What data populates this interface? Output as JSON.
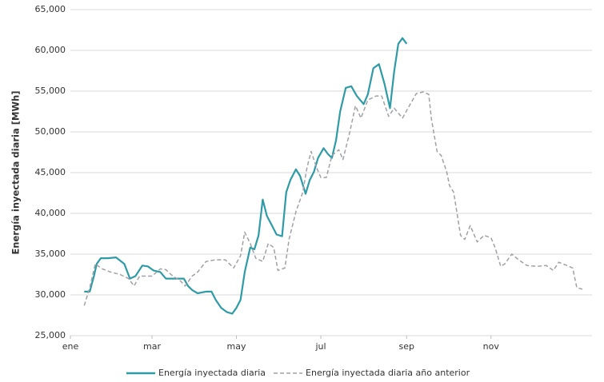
{
  "chart_data": {
    "type": "line",
    "y_label": "Energía inyectada diaria [MWh]",
    "series": [
      {
        "name": "Energía inyectada diaria",
        "color": "#2e9ba6",
        "dash": false,
        "x": [
          10,
          14,
          17,
          19,
          22,
          27,
          33,
          39,
          43,
          47,
          52,
          56,
          60,
          65,
          69,
          73,
          77,
          82,
          85,
          88,
          92,
          98,
          102,
          105,
          109,
          113,
          117,
          120,
          123,
          126,
          130,
          133,
          136,
          139,
          142,
          146,
          149,
          153,
          156,
          159,
          163,
          166,
          170,
          173,
          176,
          179,
          183,
          186,
          189,
          192,
          195,
          199,
          203,
          207,
          212,
          215,
          219,
          223,
          227,
          231,
          234,
          237,
          240,
          243
        ],
        "values": [
          30400,
          30400,
          32300,
          33800,
          34500,
          34500,
          34600,
          33800,
          32000,
          32300,
          33600,
          33500,
          33000,
          32800,
          32000,
          32000,
          32000,
          32000,
          31100,
          30600,
          30200,
          30400,
          30400,
          29400,
          28400,
          27900,
          27700,
          28400,
          29400,
          32800,
          35800,
          35600,
          37300,
          41700,
          39700,
          38400,
          37400,
          37200,
          42600,
          44100,
          45400,
          44600,
          42400,
          44100,
          45100,
          46800,
          48000,
          47300,
          46800,
          49000,
          52500,
          55400,
          55600,
          54400,
          53400,
          54600,
          57800,
          58300,
          55900,
          52900,
          57400,
          60800,
          61500,
          60800
        ]
      },
      {
        "name": "Energía inyectada diaria año anterior",
        "color": "#a0a0a8",
        "dash": true,
        "x": [
          10,
          14,
          18,
          23,
          29,
          36,
          42,
          46,
          50,
          55,
          59,
          65,
          69,
          74,
          79,
          83,
          88,
          92,
          98,
          105,
          112,
          118,
          123,
          126,
          130,
          134,
          139,
          143,
          147,
          150,
          155,
          158,
          163,
          168,
          171,
          174,
          178,
          181,
          185,
          189,
          194,
          197,
          202,
          206,
          210,
          215,
          221,
          225,
          230,
          234,
          240,
          245,
          250,
          255,
          259,
          261,
          265,
          268,
          272,
          274,
          277,
          282,
          285,
          289,
          294,
          299,
          304,
          307,
          311,
          314,
          319,
          324,
          330,
          337,
          344,
          349,
          353,
          359,
          363,
          366,
          370
        ],
        "values": [
          28700,
          30900,
          33800,
          33200,
          32800,
          32500,
          32000,
          31100,
          32300,
          32300,
          32300,
          33200,
          33100,
          32300,
          31800,
          31100,
          32300,
          32800,
          34100,
          34300,
          34300,
          33300,
          34800,
          37700,
          36300,
          34500,
          34100,
          36300,
          35800,
          33000,
          33300,
          36800,
          40200,
          42600,
          45600,
          47600,
          45600,
          44400,
          44400,
          47100,
          47800,
          46600,
          50000,
          53200,
          51700,
          53900,
          54400,
          54400,
          51900,
          52900,
          51700,
          53200,
          54700,
          54900,
          54600,
          51500,
          47600,
          47100,
          45100,
          43400,
          42600,
          37300,
          36800,
          38500,
          36500,
          37300,
          37000,
          35800,
          33500,
          33800,
          35000,
          34300,
          33600,
          33500,
          33600,
          33000,
          34000,
          33600,
          33300,
          30900,
          30700
        ]
      }
    ],
    "xlim": [
      0,
      377
    ],
    "xticks": [
      {
        "value": 0,
        "label": "ene"
      },
      {
        "value": 59,
        "label": "mar"
      },
      {
        "value": 120,
        "label": "may"
      },
      {
        "value": 181,
        "label": "jul"
      },
      {
        "value": 243,
        "label": "sep"
      },
      {
        "value": 304,
        "label": "nov"
      }
    ],
    "ylim": [
      25000,
      65000
    ],
    "yticks": [
      {
        "value": 25000,
        "label": "25,000"
      },
      {
        "value": 30000,
        "label": "30,000"
      },
      {
        "value": 35000,
        "label": "35,000"
      },
      {
        "value": 40000,
        "label": "40,000"
      },
      {
        "value": 45000,
        "label": "45,000"
      },
      {
        "value": 50000,
        "label": "50,000"
      },
      {
        "value": 55000,
        "label": "55,000"
      },
      {
        "value": 60000,
        "label": "60,000"
      },
      {
        "value": 65000,
        "label": "65,000"
      }
    ],
    "grid": true
  }
}
